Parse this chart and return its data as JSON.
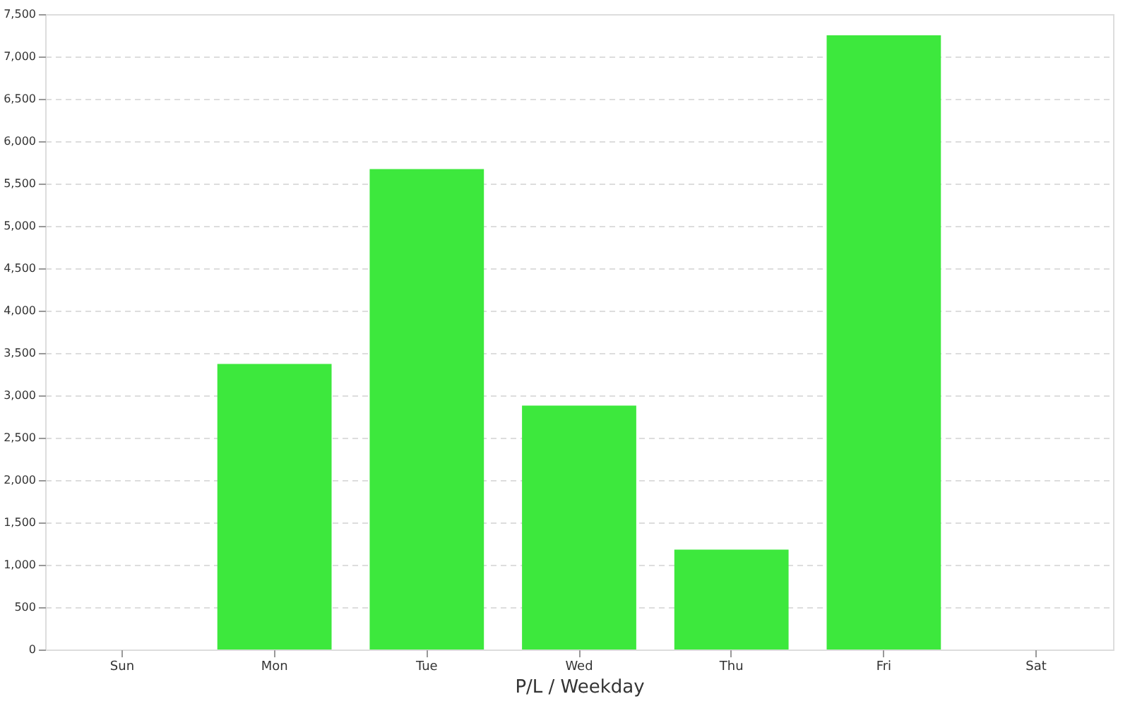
{
  "chart_data": {
    "type": "bar",
    "xlabel": "P/L / Weekday",
    "categories": [
      "Sun",
      "Mon",
      "Tue",
      "Wed",
      "Thu",
      "Fri",
      "Sat"
    ],
    "series": [
      {
        "color": "#3de83d",
        "values": [
          null,
          3370,
          5670,
          2880,
          1180,
          7250,
          null
        ]
      }
    ],
    "ylim": [
      0,
      7500
    ],
    "yticks": [
      0,
      500,
      {
        "value": 1000,
        "label": "1,000"
      },
      {
        "value": 1500,
        "label": "1,500"
      },
      {
        "value": 2000,
        "label": "2,000"
      },
      {
        "value": 2500,
        "label": "2,500"
      },
      {
        "value": 3000,
        "label": "3,000"
      },
      {
        "value": 3500,
        "label": "3,500"
      },
      {
        "value": 4000,
        "label": "4,000"
      },
      {
        "value": 4500,
        "label": "4,500"
      },
      {
        "value": 5000,
        "label": "5,000"
      },
      {
        "value": 5500,
        "label": "5,500"
      },
      {
        "value": 6000,
        "label": "6,000"
      },
      {
        "value": 6500,
        "label": "6,500"
      },
      {
        "value": 7000,
        "label": "7,000"
      },
      {
        "value": 7500,
        "label": "7,500"
      }
    ],
    "grid": "y",
    "legend": false
  }
}
